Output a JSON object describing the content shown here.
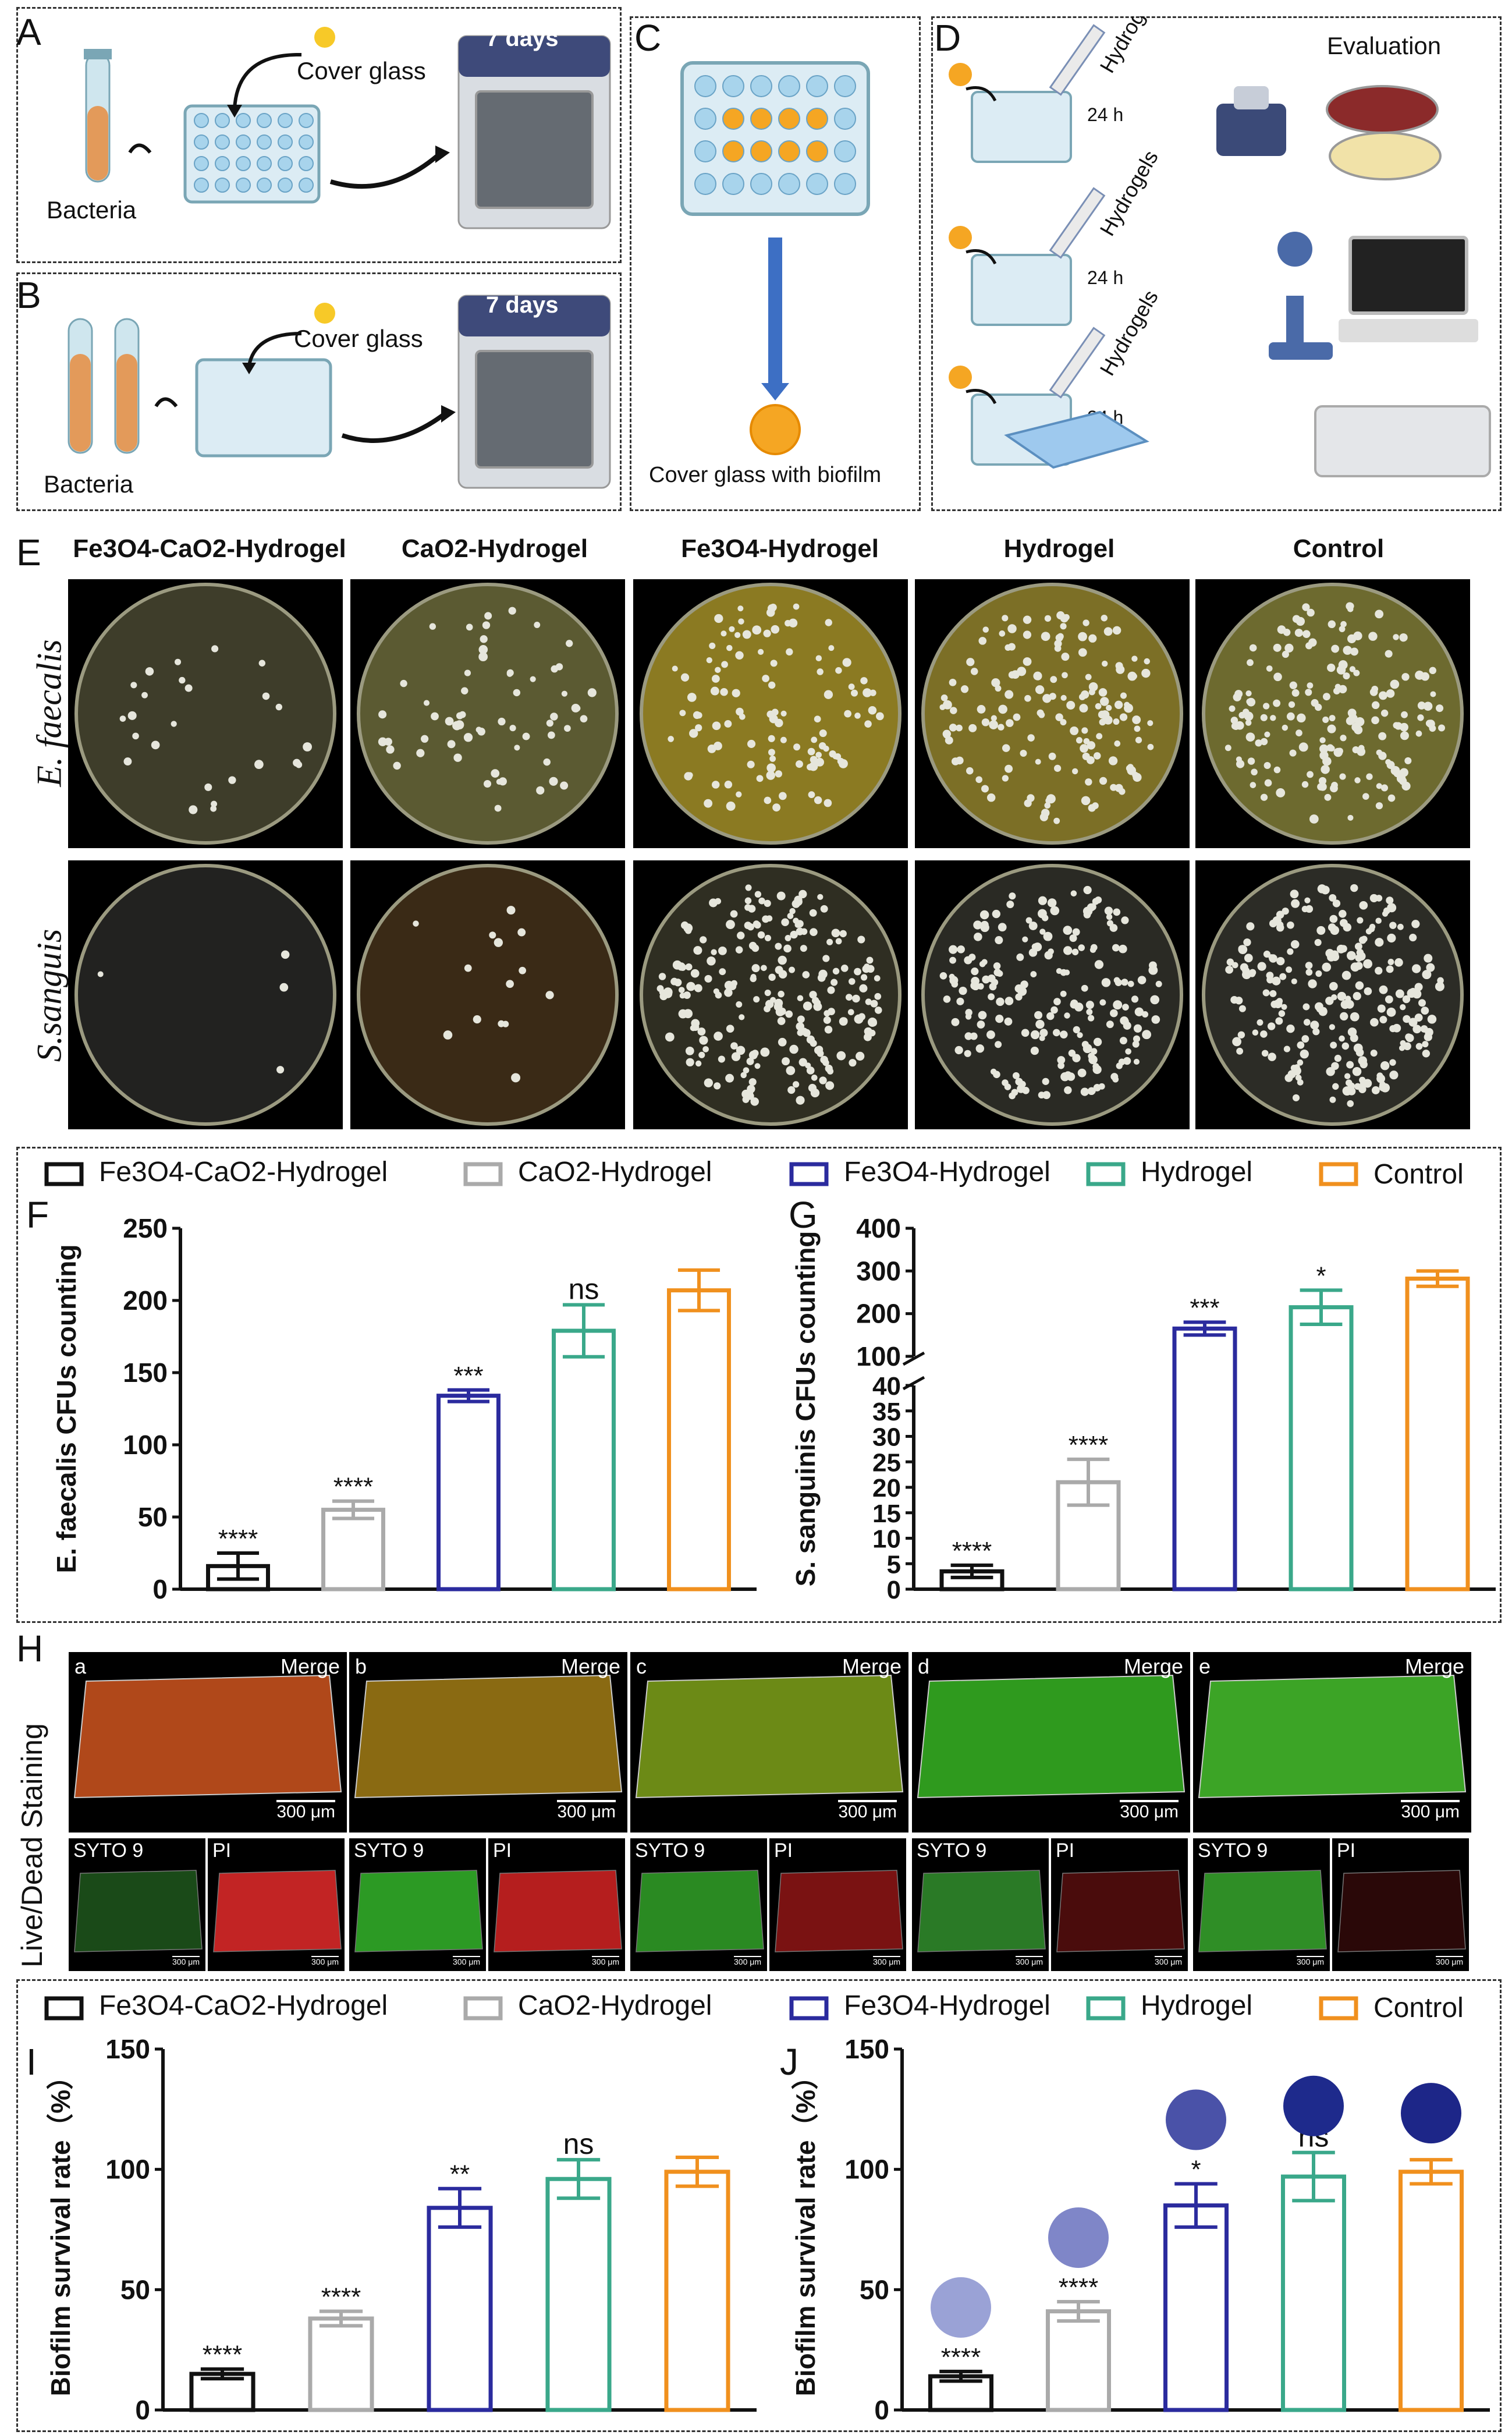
{
  "panels": {
    "A": {
      "label": "A",
      "bacteria": "Bacteria",
      "cover_glass": "Cover glass",
      "days": "7 days"
    },
    "B": {
      "label": "B",
      "bacteria": "Bacteria",
      "cover_glass": "Cover glass",
      "days": "7 days"
    },
    "C": {
      "label": "C",
      "caption": "Cover glass with biofilm"
    },
    "D": {
      "label": "D",
      "evaluation": "Evaluation",
      "hydrogels": "Hydrogels",
      "time": "24 h"
    },
    "E": {
      "label": "E",
      "columns": [
        "Fe3O4-CaO2-Hydrogel",
        "CaO2-Hydrogel",
        "Fe3O4-Hydrogel",
        "Hydrogel",
        "Control"
      ],
      "rows": [
        "E. faecalis",
        "S.sanguis"
      ]
    },
    "H": {
      "label": "H",
      "row_label": "Live/Dead Staining",
      "sub": [
        "a",
        "b",
        "c",
        "d",
        "e"
      ],
      "merge": "Merge",
      "scale": "300 μm",
      "scale_small": "300 μm",
      "syto": "SYTO 9",
      "pi": "PI"
    }
  },
  "legend": [
    "Fe3O4-CaO2-Hydrogel",
    "CaO2-Hydrogel",
    "Fe3O4-Hydrogel",
    "Hydrogel",
    "Control"
  ],
  "colors": {
    "c1": "#111111",
    "c2": "#aaaaaa",
    "c3": "#2b2b9e",
    "c4": "#3aa88a",
    "c5": "#f0901e"
  },
  "chart_data": [
    {
      "panel": "F",
      "type": "bar",
      "ylabel": "E. faecalis CFUs counting",
      "ylim": [
        0,
        250
      ],
      "yticks": [
        0,
        50,
        100,
        150,
        200,
        250
      ],
      "categories": [
        "Fe3O4-CaO2-Hydrogel",
        "CaO2-Hydrogel",
        "Fe3O4-Hydrogel",
        "Hydrogel",
        "Control"
      ],
      "values": [
        16,
        55,
        134,
        179,
        207
      ],
      "errors": [
        9,
        6,
        4,
        18,
        14
      ],
      "annotations": [
        "****",
        "****",
        "***",
        "ns",
        ""
      ]
    },
    {
      "panel": "G",
      "type": "bar",
      "ylabel": "S. sanguinis CFUs counting",
      "broken_axis": true,
      "ylim_low": [
        0,
        40
      ],
      "yticks_low": [
        0,
        5,
        10,
        15,
        20,
        25,
        30,
        35,
        40
      ],
      "ylim_high": [
        100,
        400
      ],
      "yticks_high": [
        100,
        200,
        300,
        400
      ],
      "categories": [
        "Fe3O4-CaO2-Hydrogel",
        "CaO2-Hydrogel",
        "Fe3O4-Hydrogel",
        "Hydrogel",
        "Control"
      ],
      "values": [
        3.5,
        21,
        165,
        215,
        282
      ],
      "errors": [
        1.2,
        4.5,
        15,
        40,
        18
      ],
      "annotations": [
        "****",
        "****",
        "***",
        "*",
        ""
      ]
    },
    {
      "panel": "I",
      "type": "bar",
      "ylabel": "Biofilm survival rate（%）",
      "ylim": [
        0,
        150
      ],
      "yticks": [
        0,
        50,
        100,
        150
      ],
      "categories": [
        "Fe3O4-CaO2-Hydrogel",
        "CaO2-Hydrogel",
        "Fe3O4-Hydrogel",
        "Hydrogel",
        "Control"
      ],
      "values": [
        15,
        38,
        84,
        96,
        99
      ],
      "errors": [
        2,
        3,
        8,
        8,
        6
      ],
      "annotations": [
        "****",
        "****",
        "**",
        "ns",
        ""
      ]
    },
    {
      "panel": "J",
      "type": "bar",
      "ylabel": "Biofilm survival rate（%）",
      "ylim": [
        0,
        150
      ],
      "yticks": [
        0,
        50,
        100,
        150
      ],
      "categories": [
        "Fe3O4-CaO2-Hydrogel",
        "CaO2-Hydrogel",
        "Fe3O4-Hydrogel",
        "Hydrogel",
        "Control"
      ],
      "values": [
        14,
        41,
        85,
        97,
        99
      ],
      "errors": [
        2,
        4,
        9,
        10,
        5
      ],
      "annotations": [
        "****",
        "****",
        "*",
        "ns",
        ""
      ]
    }
  ]
}
